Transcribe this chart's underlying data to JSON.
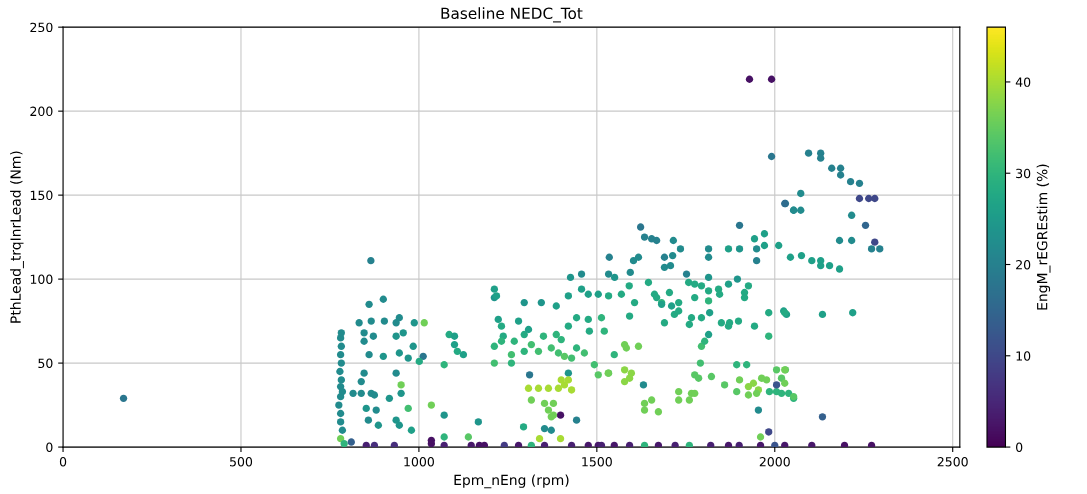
{
  "chart_data": {
    "type": "scatter",
    "title": "Baseline NEDC_Tot",
    "xlabel": "Epm_nEng (rpm)",
    "ylabel": "PthLead_trqInrLead (Nm)",
    "clabel": "EngM_rEGREstim (%)",
    "xlim": [
      0,
      2520
    ],
    "ylim": [
      0,
      250
    ],
    "xticks": [
      0,
      500,
      1000,
      1500,
      2000,
      2500
    ],
    "yticks": [
      0,
      50,
      100,
      150,
      200,
      250
    ],
    "clim": [
      0,
      46
    ],
    "cticks": [
      0,
      10,
      20,
      30,
      40
    ],
    "grid": true,
    "marker": "circle",
    "x": [
      170,
      780,
      780,
      775,
      780,
      785,
      780,
      782,
      778,
      782,
      780,
      782,
      780,
      782,
      785,
      780,
      790,
      810,
      860,
      900,
      832,
      866,
      903,
      936,
      945,
      987,
      1015,
      846,
      872,
      936,
      956,
      846,
      984,
      860,
      900,
      945,
      970,
      1012,
      1001,
      846,
      936,
      950,
      838,
      815,
      838,
      866,
      875,
      917,
      950,
      852,
      880,
      858,
      886,
      936,
      945,
      979,
      970,
      1035,
      1071,
      1071,
      1139,
      1167,
      1085,
      1100,
      1100,
      1108,
      1125,
      1071,
      865,
      1212,
      1223,
      1232,
      1237,
      1212,
      1232,
      1212,
      1260,
      1260,
      1280,
      1296,
      1308,
      1268,
      1296,
      1316,
      1336,
      1350,
      1372,
      1392,
      1409,
      1429,
      1443,
      1465,
      1479,
      1476,
      1443,
      1420,
      1386,
      1400,
      1420,
      1311,
      1308,
      1336,
      1364,
      1392,
      1409,
      1429,
      1400,
      1420,
      1316,
      1353,
      1378,
      1364,
      1372,
      1398,
      1378,
      1443,
      1294,
      1353,
      1372,
      1339,
      1398,
      1504,
      1493,
      1533,
      852,
      875,
      931,
      1035,
      1035,
      1071,
      1147,
      1170,
      1184,
      1240,
      1280,
      1316,
      1353,
      1429,
      1476,
      1504,
      1513,
      1549,
      1592,
      1634,
      1673,
      1720,
      1760,
      1820,
      1870,
      1900,
      1960,
      2000,
      2028,
      2104,
      2196,
      2272,
      1623,
      1634,
      1654,
      1668,
      1715,
      1735,
      1814,
      1814,
      1901,
      1870,
      1901,
      1949,
      1949,
      1943,
      1971,
      1971,
      2011,
      2030,
      2053,
      2044,
      1535,
      1603,
      1617,
      1690,
      1713,
      1690,
      1707,
      1457,
      1426,
      1533,
      1550,
      1594,
      1752,
      1814,
      1895,
      1212,
      1218,
      1296,
      1344,
      1386,
      1420,
      1457,
      1476,
      1504,
      1533,
      1569,
      1591,
      1645,
      1662,
      1704,
      1758,
      1775,
      1794,
      1814,
      1842,
      1870,
      1915,
      1915,
      1926,
      1606,
      1668,
      1682,
      1730,
      1775,
      1814,
      1845,
      1578,
      1583,
      1617,
      1549,
      1532,
      1578,
      1597,
      1578,
      1592,
      1631,
      1654,
      1634,
      1634,
      1673,
      1730,
      1730,
      1766,
      1760,
      1775,
      1775,
      1786,
      1822,
      1791,
      1794,
      1803,
      1814,
      1859,
      1893,
      1893,
      1921,
      1901,
      1926,
      1940,
      1954,
      1926,
      1949,
      1963,
      1977,
      1985,
      2005,
      2019,
      2039,
      2053,
      2005,
      2030,
      2019,
      2005,
      1954,
      1983,
      1960,
      1943,
      1870,
      1898,
      1873,
      1850,
      1794,
      1817,
      1766,
      1718,
      1730,
      1690,
      1710,
      1760,
      1983,
      1983,
      2025,
      2033,
      1513,
      1521,
      1592,
      1682,
      2095,
      2129,
      2129,
      2160,
      2185,
      2185,
      2213,
      2238,
      2073,
      2028,
      2053,
      2073,
      2238,
      2264,
      2281,
      2216,
      2255,
      2182,
      2216,
      2281,
      2272,
      2295,
      2075,
      2104,
      2129,
      2129,
      2154,
      2182,
      2028,
      2134,
      2219,
      2134,
      2028,
      2028,
      2053,
      1929,
      1991,
      1991
    ],
    "values": [
      29,
      15,
      20,
      25,
      30,
      33,
      36,
      40,
      45,
      50,
      55,
      60,
      65,
      68,
      10,
      5,
      2,
      3,
      85,
      88,
      74,
      75,
      75,
      74,
      77,
      74,
      74,
      68,
      66,
      66,
      68,
      63,
      60,
      55,
      54,
      56,
      53,
      54,
      51,
      44,
      44,
      37,
      39,
      32,
      32,
      32,
      31,
      29,
      32,
      23,
      22,
      16,
      13,
      16,
      13,
      10,
      23,
      25,
      19,
      6,
      6,
      15,
      67,
      66,
      61,
      57,
      55,
      49,
      111,
      89,
      76,
      72,
      66,
      60,
      63,
      50,
      50,
      55,
      75,
      67,
      70,
      63,
      57,
      61,
      57,
      66,
      59,
      56,
      54,
      53,
      59,
      56,
      69,
      76,
      77,
      72,
      67,
      64,
      44,
      43,
      35,
      35,
      35,
      35,
      37,
      34,
      40,
      40,
      28,
      26,
      26,
      22,
      18,
      19,
      19,
      16,
      12,
      11,
      10,
      5,
      5,
      43,
      49,
      44,
      1,
      1,
      1,
      2,
      4,
      1,
      1,
      1,
      1,
      1,
      1,
      1,
      1,
      1,
      1,
      1,
      1,
      1,
      1,
      1,
      1,
      1,
      1,
      1,
      1,
      1,
      1,
      1,
      1,
      1,
      1,
      1,
      131,
      125,
      124,
      123,
      123,
      118,
      118,
      113,
      132,
      118,
      118,
      118,
      111,
      124,
      127,
      120,
      120,
      145,
      141,
      113,
      113,
      111,
      113,
      113,
      114,
      107,
      108,
      103,
      101,
      103,
      101,
      104,
      103,
      101,
      100,
      94,
      90,
      86,
      86,
      84,
      90,
      94,
      91,
      91,
      90,
      91,
      96,
      98,
      91,
      92,
      98,
      97,
      96,
      93,
      94,
      97,
      92,
      89,
      96,
      86,
      89,
      86,
      86,
      89,
      87,
      91,
      61,
      59,
      60,
      55,
      44,
      46,
      44,
      39,
      41,
      37,
      28,
      26,
      22,
      21,
      33,
      28,
      32,
      28,
      32,
      43,
      41,
      42,
      50,
      60,
      63,
      67,
      37,
      33,
      49,
      49,
      40,
      36,
      38,
      34,
      31,
      32,
      41,
      40,
      33,
      33,
      32,
      32,
      29,
      46,
      46,
      41,
      37,
      22,
      9,
      6,
      72,
      72,
      75,
      74,
      74,
      77,
      80,
      77,
      79,
      81,
      74,
      84,
      73,
      80,
      66,
      81,
      79,
      77,
      69,
      78,
      85,
      175,
      175,
      172,
      166,
      166,
      162,
      158,
      157,
      151,
      145,
      141,
      141,
      148,
      148,
      148,
      138,
      132,
      123,
      123,
      122,
      118,
      118,
      114,
      111,
      111,
      108,
      108,
      106,
      80,
      79,
      80,
      18,
      46,
      38,
      30,
      219,
      219,
      173
    ],
    "cvalues": [
      18,
      22,
      22,
      22,
      22,
      22,
      22,
      22,
      22,
      22,
      22,
      22,
      22,
      22,
      22,
      36,
      30,
      14,
      22,
      22,
      22,
      22,
      22,
      22,
      22,
      24,
      36,
      22,
      22,
      24,
      24,
      22,
      24,
      22,
      24,
      24,
      24,
      18,
      28,
      22,
      22,
      36,
      22,
      22,
      22,
      22,
      22,
      24,
      24,
      24,
      22,
      22,
      24,
      24,
      24,
      26,
      32,
      36,
      24,
      30,
      34,
      24,
      28,
      26,
      26,
      28,
      26,
      30,
      20,
      24,
      26,
      28,
      28,
      30,
      30,
      32,
      30,
      32,
      26,
      28,
      26,
      30,
      30,
      32,
      32,
      30,
      32,
      32,
      34,
      32,
      30,
      32,
      28,
      28,
      28,
      28,
      30,
      30,
      24,
      18,
      40,
      40,
      40,
      40,
      40,
      40,
      40,
      40,
      36,
      36,
      36,
      36,
      36,
      2,
      36,
      20,
      28,
      22,
      22,
      40,
      40,
      34,
      32,
      34,
      4,
      6,
      6,
      2,
      2,
      4,
      3,
      2,
      2,
      8,
      3,
      30,
      4,
      4,
      3,
      3,
      4,
      3,
      4,
      30,
      3,
      4,
      30,
      4,
      3,
      4,
      3,
      12,
      3,
      3,
      2,
      2,
      18,
      20,
      20,
      20,
      22,
      22,
      22,
      22,
      18,
      26,
      24,
      22,
      20,
      26,
      26,
      26,
      26,
      18,
      22,
      26,
      20,
      22,
      22,
      20,
      22,
      22,
      22,
      22,
      24,
      22,
      24,
      22,
      20,
      24,
      24,
      26,
      26,
      24,
      24,
      26,
      26,
      26,
      26,
      26,
      28,
      28,
      28,
      28,
      28,
      28,
      28,
      28,
      28,
      28,
      28,
      26,
      28,
      28,
      28,
      28,
      28,
      30,
      28,
      28,
      30,
      28,
      36,
      36,
      36,
      30,
      36,
      38,
      38,
      38,
      38,
      22,
      36,
      36,
      36,
      36,
      36,
      36,
      36,
      36,
      36,
      34,
      34,
      34,
      32,
      32,
      30,
      26,
      34,
      34,
      30,
      30,
      36,
      38,
      38,
      38,
      36,
      36,
      36,
      36,
      30,
      30,
      30,
      30,
      30,
      34,
      34,
      34,
      12,
      22,
      10,
      36,
      28,
      28,
      28,
      28,
      28,
      28,
      26,
      28,
      28,
      28,
      28,
      26,
      28,
      28,
      30,
      26,
      26,
      30,
      30,
      28,
      26,
      20,
      20,
      20,
      20,
      20,
      20,
      20,
      20,
      22,
      16,
      22,
      22,
      10,
      10,
      10,
      22,
      15,
      22,
      22,
      10,
      20,
      20,
      26,
      26,
      26,
      26,
      26,
      26,
      28,
      26,
      26,
      14,
      36,
      36,
      34,
      2,
      2,
      18
    ]
  }
}
